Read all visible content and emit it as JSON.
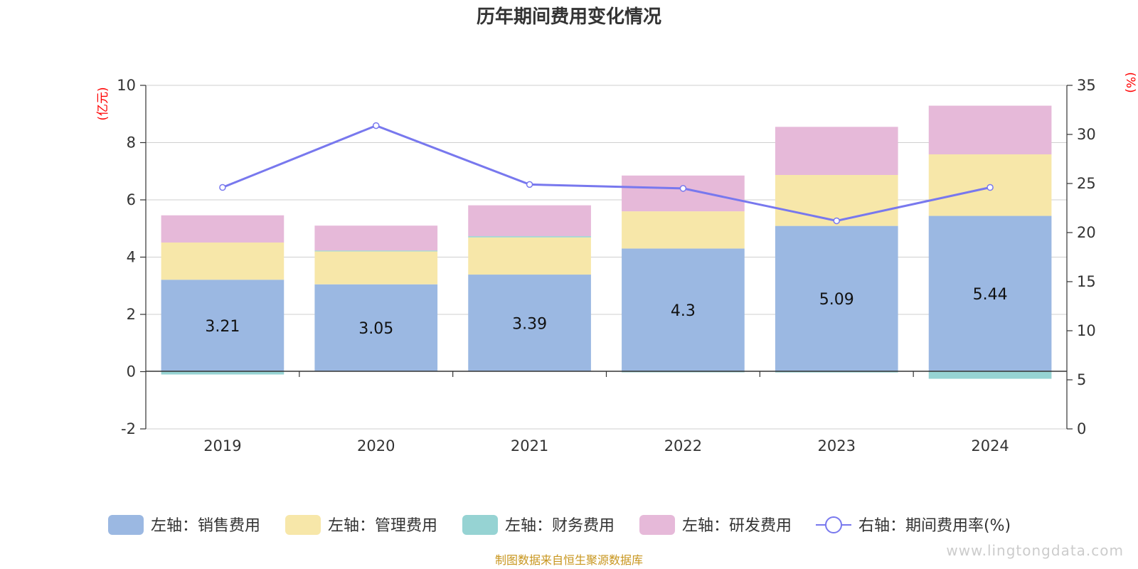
{
  "title": "历年期间费用变化情况",
  "source_text": "制图数据来自恒生聚源数据库",
  "watermark": "www.lingtongdata.com",
  "chart_data": {
    "type": "bar",
    "stacked": true,
    "categories": [
      "2019",
      "2020",
      "2021",
      "2022",
      "2023",
      "2024"
    ],
    "left_axis": {
      "name": "(亿元)",
      "ylim": [
        -2,
        10
      ],
      "ticks": [
        "-2",
        "0",
        "2",
        "4",
        "6",
        "8",
        "10"
      ]
    },
    "right_axis": {
      "name": "(%)",
      "ylim": [
        0,
        35
      ],
      "ticks": [
        "0",
        "5",
        "10",
        "15",
        "20",
        "25",
        "30",
        "35"
      ]
    },
    "series": [
      {
        "name": "左轴：销售费用",
        "type": "bar",
        "axis": "left",
        "color": "#9bb8e2",
        "values": [
          3.21,
          3.05,
          3.39,
          4.3,
          5.09,
          5.44
        ],
        "labels": [
          "3.21",
          "3.05",
          "3.39",
          "4.3",
          "5.09",
          "5.44"
        ]
      },
      {
        "name": "左轴：管理费用",
        "type": "bar",
        "axis": "left",
        "color": "#f7e7a9",
        "values": [
          1.3,
          1.15,
          1.3,
          1.3,
          1.78,
          2.15
        ]
      },
      {
        "name": "左轴：财务费用",
        "type": "bar",
        "axis": "left",
        "color": "#96d3d3",
        "values": [
          -0.1,
          0.03,
          0.04,
          -0.02,
          -0.03,
          -0.25
        ]
      },
      {
        "name": "左轴：研发费用",
        "type": "bar",
        "axis": "left",
        "color": "#e6b9d9",
        "values": [
          0.95,
          0.87,
          1.08,
          1.25,
          1.68,
          1.7
        ]
      },
      {
        "name": "右轴：期间费用率(%)",
        "type": "line",
        "axis": "right",
        "color": "#7878ee",
        "values": [
          24.6,
          30.9,
          24.9,
          24.5,
          21.2,
          24.6
        ]
      }
    ],
    "grid": true,
    "legend_position": "bottom"
  }
}
